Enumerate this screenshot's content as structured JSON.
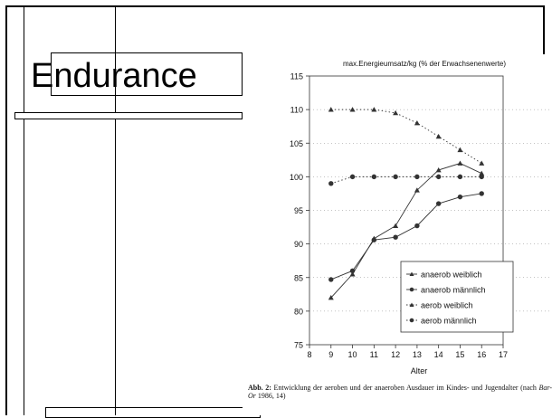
{
  "slide": {
    "title": "Endurance"
  },
  "figure": {
    "caption_label": "Abb. 2:",
    "caption_text_1": "Entwicklung der aeroben und der anaeroben Ausdauer im Kindes- und Jugendalter (nach",
    "caption_author": "Bar-Or",
    "caption_text_2": "1986, 14)"
  },
  "chart_data": {
    "type": "line",
    "title": "max.Energieumsatz/kg (% der Erwachsenenwerte)",
    "xlabel": "Alter",
    "ylabel": "",
    "xlim": [
      8,
      17
    ],
    "ylim": [
      75,
      115
    ],
    "x_ticks": [
      8,
      9,
      10,
      11,
      12,
      13,
      14,
      15,
      16,
      17
    ],
    "y_ticks": [
      75,
      80,
      85,
      90,
      95,
      100,
      105,
      110,
      115
    ],
    "grid": "dotted horizontal",
    "legend_position": "bottom-right",
    "series": [
      {
        "name": "anaerob weiblich",
        "marker": "triangle",
        "line": "solid",
        "x": [
          9,
          10,
          11,
          12,
          13,
          14,
          15,
          16
        ],
        "values": [
          82,
          85.5,
          90.8,
          92.7,
          98,
          101,
          102,
          100.5
        ]
      },
      {
        "name": "anaerob männlich",
        "marker": "circle",
        "line": "solid",
        "x": [
          9,
          10,
          11,
          12,
          13,
          14,
          15,
          16
        ],
        "values": [
          84.7,
          86,
          90.6,
          91,
          92.7,
          96,
          97,
          97.5
        ]
      },
      {
        "name": "aerob weiblich",
        "marker": "triangle",
        "line": "dotted",
        "x": [
          9,
          10,
          11,
          12,
          13,
          14,
          15,
          16
        ],
        "values": [
          110,
          110,
          110,
          109.5,
          108,
          106,
          104,
          102
        ]
      },
      {
        "name": "aerob männlich",
        "marker": "circle",
        "line": "dotted",
        "x": [
          9,
          10,
          11,
          12,
          13,
          14,
          15,
          16
        ],
        "values": [
          99,
          100,
          100,
          100,
          100,
          100,
          100,
          100
        ]
      }
    ]
  }
}
